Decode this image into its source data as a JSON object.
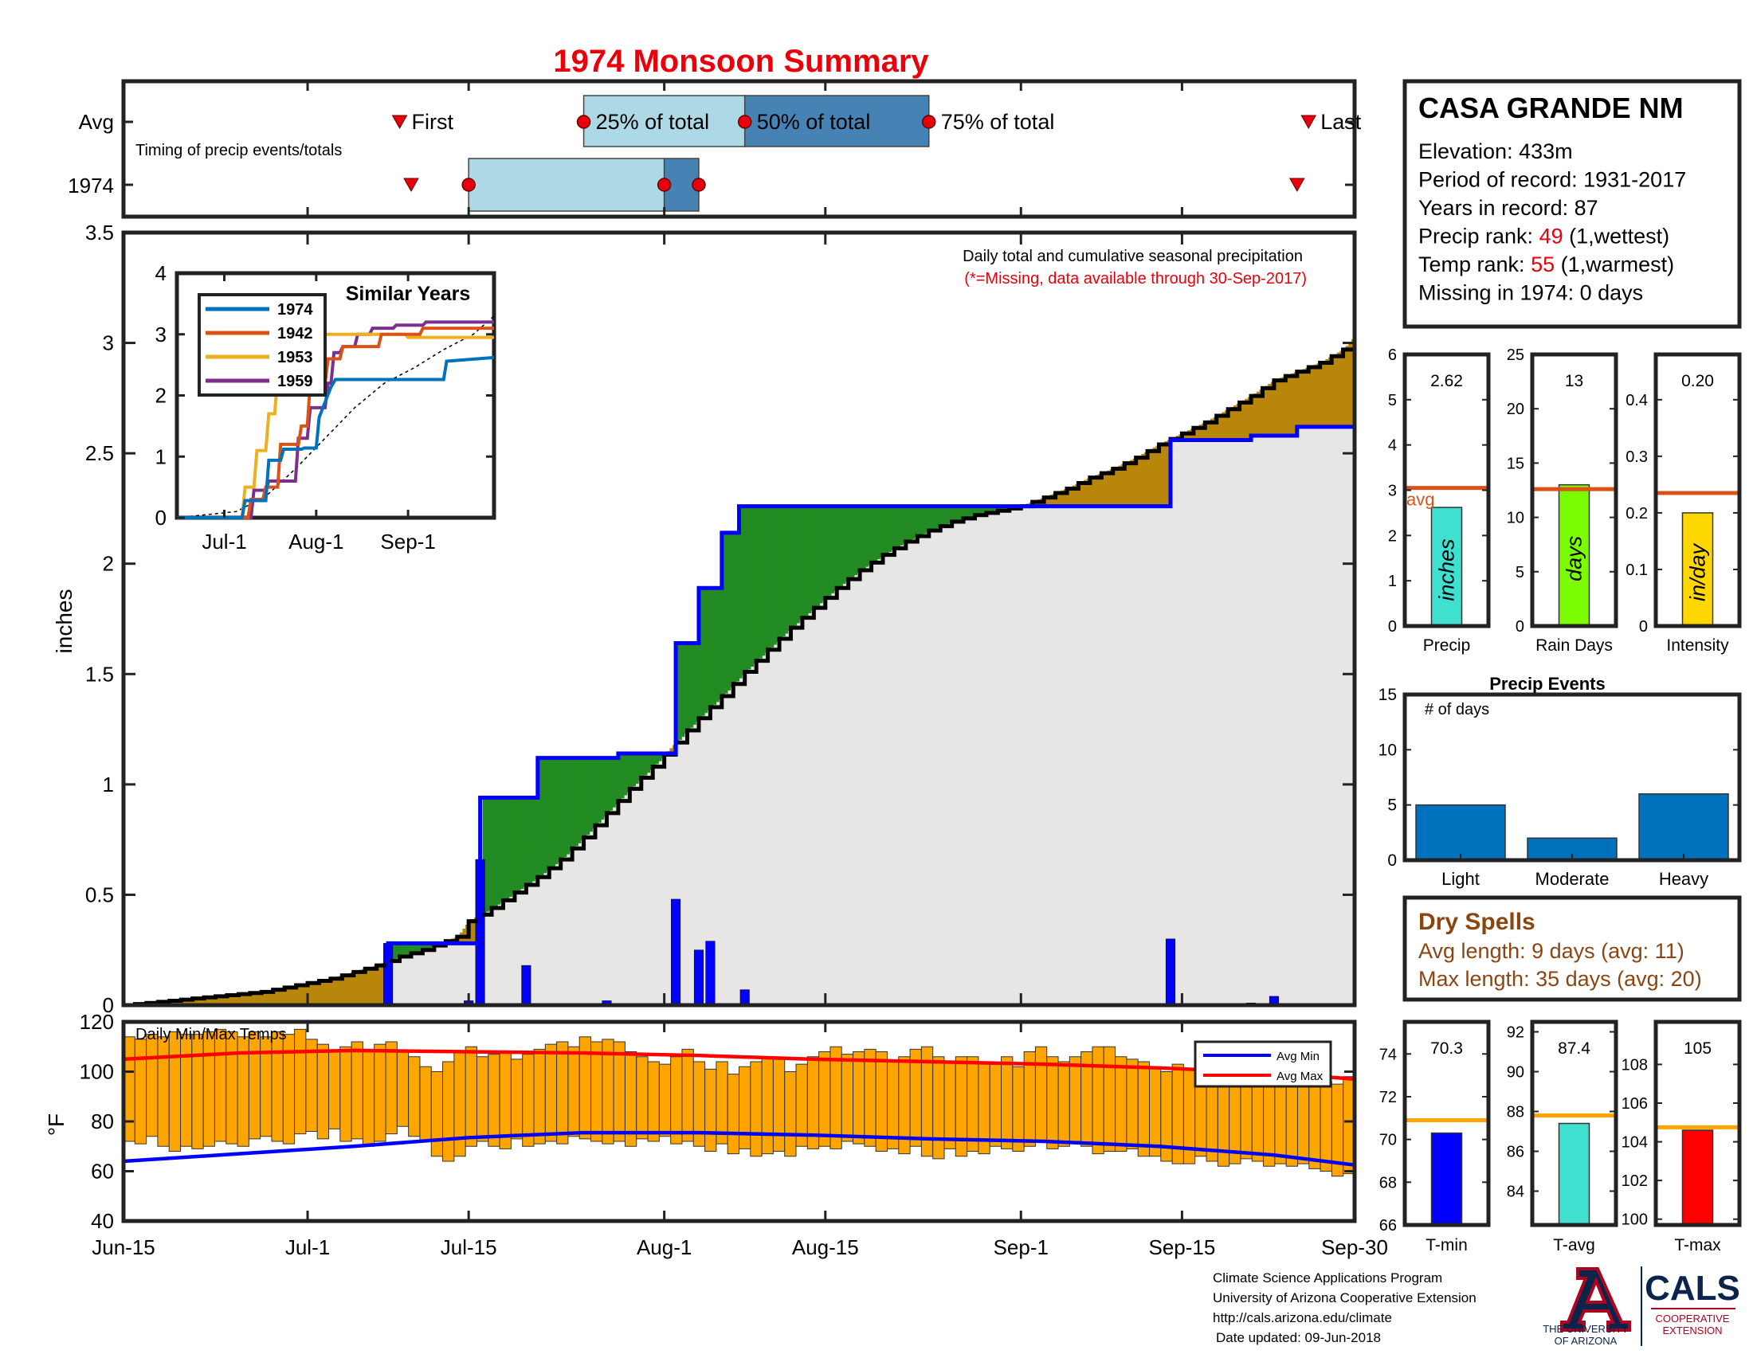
{
  "title": "1974 Monsoon Summary",
  "timing": {
    "row_labels": [
      "Avg",
      "1974"
    ],
    "subtitle": "Timing of precip events/totals",
    "avg": {
      "first": "Jul-9",
      "q25": "Jul-25",
      "q50": "Aug-8",
      "q75": "Aug-24",
      "last": "Sep-26"
    },
    "year": {
      "first": "Jul-10",
      "q25": "Jul-15",
      "q50": "Aug-1",
      "q75": "Aug-4",
      "last": "Sep-25"
    },
    "labels": {
      "first": "First",
      "q25": "25% of total",
      "q50": "50% of total",
      "q75": "75% of total",
      "last": "Last"
    }
  },
  "station": {
    "name": "CASA GRANDE NM",
    "lines": [
      {
        "label": "Elevation: ",
        "value": "433m",
        "suffix": "",
        "value_red": false
      },
      {
        "label": "Period of record: ",
        "value": "1931-2017",
        "suffix": "",
        "value_red": false
      },
      {
        "label": "Years in record: ",
        "value": "87",
        "suffix": "",
        "value_red": false
      },
      {
        "label": "Precip rank: ",
        "value": "49",
        "suffix": " (1,wettest)",
        "value_red": true
      },
      {
        "label": "Temp rank: ",
        "value": "55",
        "suffix": " (1,warmest)",
        "value_red": true
      },
      {
        "label": "Missing in 1974: ",
        "value": "0 days",
        "suffix": "",
        "value_red": false
      }
    ]
  },
  "main_chart": {
    "annotation": "Daily total and cumulative seasonal precipitation",
    "missing_note": "(*=Missing, data available through 30-Sep-2017)",
    "ylabel": "inches",
    "ylim": [
      0,
      3.5
    ],
    "yticks": [
      "0",
      "0.5",
      "1",
      "1.5",
      "2",
      "2.5",
      "3",
      "3.5"
    ],
    "xticks": [
      {
        "label": "Jun-15",
        "day": 0
      },
      {
        "label": "Jul-1",
        "day": 16
      },
      {
        "label": "Jul-15",
        "day": 30
      },
      {
        "label": "Aug-1",
        "day": 47
      },
      {
        "label": "Aug-15",
        "day": 61
      },
      {
        "label": "Sep-1",
        "day": 78
      },
      {
        "label": "Sep-15",
        "day": 92
      },
      {
        "label": "Sep-30",
        "day": 107
      }
    ]
  },
  "chart_data": [
    {
      "type": "area",
      "name": "cumulative_precipitation",
      "avg_cumulative": {
        "x": [
          0,
          2,
          4,
          6,
          8,
          10,
          12,
          14,
          16,
          18,
          20,
          22,
          24,
          26,
          28,
          29,
          30,
          32,
          34,
          36,
          38,
          40,
          42,
          44,
          46,
          48,
          50,
          52,
          54,
          56,
          58,
          60,
          62,
          64,
          66,
          68,
          70,
          72,
          74,
          76,
          78,
          80,
          82,
          84,
          86,
          88,
          90,
          92,
          94,
          96,
          98,
          100,
          102,
          104,
          106,
          107
        ],
        "y": [
          0,
          0.01,
          0.02,
          0.03,
          0.04,
          0.05,
          0.06,
          0.08,
          0.1,
          0.12,
          0.15,
          0.18,
          0.22,
          0.25,
          0.29,
          0.31,
          0.38,
          0.44,
          0.51,
          0.58,
          0.66,
          0.76,
          0.87,
          0.98,
          1.08,
          1.19,
          1.3,
          1.4,
          1.51,
          1.61,
          1.71,
          1.8,
          1.89,
          1.97,
          2.04,
          2.1,
          2.15,
          2.19,
          2.22,
          2.24,
          2.26,
          2.3,
          2.34,
          2.39,
          2.43,
          2.48,
          2.54,
          2.59,
          2.64,
          2.7,
          2.76,
          2.83,
          2.87,
          2.91,
          2.97,
          3.03
        ]
      },
      "year_cumulative": {
        "x": [
          0,
          22,
          23,
          30,
          31,
          35,
          36,
          42,
          43,
          47,
          48,
          49,
          50,
          51,
          52,
          53,
          53.5,
          90,
          91,
          97,
          98,
          101,
          102,
          107
        ],
        "y": [
          0,
          0,
          0.28,
          0.28,
          0.94,
          0.94,
          1.12,
          1.12,
          1.14,
          1.14,
          1.64,
          1.64,
          1.89,
          1.89,
          2.14,
          2.14,
          2.26,
          2.26,
          2.56,
          2.56,
          2.58,
          2.58,
          2.62,
          2.62
        ]
      },
      "daily_precip": [
        {
          "day": 23,
          "value": 0.28
        },
        {
          "day": 30,
          "value": 0.02
        },
        {
          "day": 31,
          "value": 0.66
        },
        {
          "day": 35,
          "value": 0.18
        },
        {
          "day": 42,
          "value": 0.02
        },
        {
          "day": 48,
          "value": 0.48
        },
        {
          "day": 50,
          "value": 0.25
        },
        {
          "day": 51,
          "value": 0.29
        },
        {
          "day": 54,
          "value": 0.07
        },
        {
          "day": 91,
          "value": 0.3
        },
        {
          "day": 98,
          "value": 0.01
        },
        {
          "day": 100,
          "value": 0.04
        }
      ]
    },
    {
      "type": "line",
      "name": "similar_years",
      "title": "Similar Years",
      "ylim": [
        0,
        4
      ],
      "yticks": [
        "0",
        "1",
        "2",
        "3",
        "4"
      ],
      "xticks": [
        {
          "label": "Jul-1",
          "day": 16
        },
        {
          "label": "Aug-1",
          "day": 47
        },
        {
          "label": "Sep-1",
          "day": 78
        }
      ],
      "series": [
        {
          "name": "1974",
          "color": "#0072BD",
          "x": [
            0,
            22,
            23,
            30,
            31,
            35,
            36,
            42,
            43,
            47,
            48,
            50,
            52,
            53.5,
            90,
            91,
            107
          ],
          "y": [
            0,
            0,
            0.28,
            0.28,
            0.94,
            0.94,
            1.12,
            1.12,
            1.14,
            1.14,
            1.64,
            1.89,
            2.14,
            2.26,
            2.26,
            2.56,
            2.62
          ]
        },
        {
          "name": "1942",
          "color": "#D95319",
          "x": [
            0,
            24,
            25,
            29,
            30,
            34,
            35,
            41,
            42,
            44,
            45,
            50,
            51,
            55,
            56,
            68,
            69,
            82,
            83,
            107
          ],
          "y": [
            0,
            0,
            0.3,
            0.3,
            0.5,
            0.5,
            1.2,
            1.2,
            1.5,
            1.5,
            2.2,
            2.2,
            2.6,
            2.6,
            2.8,
            2.8,
            3.0,
            3.0,
            3.1,
            3.1
          ]
        },
        {
          "name": "1953",
          "color": "#EDB120",
          "x": [
            0,
            22,
            23,
            26,
            27,
            30,
            31,
            33,
            34,
            38,
            39,
            43,
            44,
            47,
            48,
            60,
            61,
            77,
            78,
            107
          ],
          "y": [
            0,
            0,
            0.5,
            0.5,
            1.1,
            1.1,
            1.7,
            1.7,
            2.3,
            2.3,
            2.8,
            2.8,
            2.9,
            2.9,
            3.0,
            3.0,
            3.0,
            3.0,
            2.95,
            2.95
          ]
        },
        {
          "name": "1959",
          "color": "#7E2F8E",
          "x": [
            0,
            25,
            26,
            30,
            31,
            40,
            41,
            44,
            45,
            50,
            51,
            52,
            53,
            55,
            56,
            60,
            61,
            65,
            66,
            73,
            74,
            83,
            84,
            107
          ],
          "y": [
            0,
            0,
            0.45,
            0.45,
            0.6,
            0.6,
            1.3,
            1.3,
            1.8,
            1.8,
            2.2,
            2.2,
            2.7,
            2.7,
            2.8,
            2.8,
            3.0,
            3.0,
            3.1,
            3.1,
            3.15,
            3.15,
            3.2,
            3.2
          ]
        }
      ],
      "avg_dashed": {
        "x": [
          0,
          20,
          30,
          40,
          50,
          60,
          70,
          80,
          90,
          100,
          107
        ],
        "y": [
          0,
          0.1,
          0.35,
          0.8,
          1.3,
          1.8,
          2.2,
          2.45,
          2.75,
          3.0,
          3.3
        ]
      }
    },
    {
      "type": "bar",
      "name": "temps",
      "title": "Daily Min/Max Temps",
      "ylabel": "°F",
      "ylim": [
        40,
        120
      ],
      "yticks": [
        "40",
        "60",
        "80",
        "100",
        "120"
      ],
      "legend": [
        "Avg Min",
        "Avg Max"
      ],
      "tmax": [
        114,
        113,
        115,
        114,
        116,
        115,
        115,
        116,
        117,
        116,
        114,
        116,
        114,
        116,
        115,
        117,
        113,
        111,
        108,
        110,
        112,
        109,
        111,
        112,
        108,
        106,
        102,
        100,
        104,
        108,
        110,
        106,
        107,
        108,
        105,
        107,
        109,
        111,
        112,
        110,
        114,
        112,
        113,
        112,
        108,
        106,
        104,
        103,
        106,
        109,
        104,
        101,
        104,
        99,
        102,
        104,
        106,
        105,
        100,
        103,
        106,
        108,
        110,
        107,
        108,
        109,
        108,
        104,
        106,
        109,
        110,
        106,
        104,
        106,
        106,
        104,
        103,
        106,
        102,
        108,
        110,
        106,
        104,
        106,
        108,
        110,
        110,
        106,
        105,
        104,
        102,
        100,
        103,
        101,
        104,
        103,
        100,
        97,
        99,
        101,
        102,
        98,
        99,
        100,
        97,
        96,
        95,
        98
      ],
      "tmin": [
        72,
        71,
        74,
        70,
        68,
        70,
        69,
        70,
        72,
        71,
        70,
        73,
        74,
        72,
        71,
        75,
        76,
        73,
        77,
        72,
        73,
        70,
        72,
        75,
        78,
        74,
        72,
        66,
        64,
        66,
        70,
        72,
        70,
        69,
        73,
        70,
        71,
        72,
        71,
        74,
        73,
        72,
        71,
        72,
        70,
        73,
        72,
        74,
        71,
        72,
        70,
        68,
        71,
        67,
        69,
        66,
        67,
        68,
        66,
        70,
        69,
        70,
        69,
        72,
        71,
        70,
        68,
        69,
        67,
        70,
        66,
        65,
        69,
        66,
        68,
        67,
        70,
        69,
        68,
        70,
        72,
        69,
        70,
        72,
        70,
        67,
        68,
        68,
        69,
        66,
        66,
        64,
        63,
        63,
        66,
        64,
        62,
        63,
        65,
        64,
        62,
        63,
        62,
        63,
        61,
        60,
        58,
        59
      ],
      "avg_max": {
        "x": [
          0,
          10,
          20,
          30,
          40,
          50,
          60,
          70,
          80,
          90,
          100,
          107
        ],
        "y": [
          105,
          107.5,
          108.5,
          108,
          107.5,
          106.5,
          105,
          104,
          103,
          101.5,
          99.5,
          97
        ]
      },
      "avg_min": {
        "x": [
          0,
          10,
          20,
          30,
          40,
          50,
          60,
          70,
          80,
          90,
          100,
          107
        ],
        "y": [
          64,
          67,
          70,
          73.5,
          75.5,
          75.5,
          74.5,
          73,
          72,
          70,
          66.5,
          62.5
        ]
      }
    },
    {
      "type": "bar",
      "name": "precip_stats",
      "panels": [
        {
          "label": "Precip",
          "value": 2.62,
          "value_text": "2.62",
          "avg": 3.05,
          "ylim": [
            0,
            6
          ],
          "yticks": [
            "0",
            "1",
            "2",
            "3",
            "4",
            "5",
            "6"
          ],
          "unit": "inches",
          "color": "#40E0D0",
          "avg_label": "avg"
        },
        {
          "label": "Rain Days",
          "value": 13,
          "value_text": "13",
          "avg": 12.6,
          "ylim": [
            0,
            25
          ],
          "yticks": [
            "0",
            "5",
            "10",
            "15",
            "20",
            "25"
          ],
          "unit": "days",
          "color": "#7CFC00"
        },
        {
          "label": "Intensity",
          "value": 0.2,
          "value_text": "0.20",
          "avg": 0.235,
          "ylim": [
            0,
            0.48
          ],
          "yticks": [
            "0",
            "0.1",
            "0.2",
            "0.3",
            "0.4"
          ],
          "unit": "in/day",
          "color": "#FFD700"
        }
      ]
    },
    {
      "type": "bar",
      "name": "precip_events",
      "title": "Precip Events",
      "ylabel_note": "# of days",
      "categories": [
        "Light",
        "Moderate",
        "Heavy"
      ],
      "values": [
        5,
        2,
        6
      ],
      "ylim": [
        0,
        15
      ],
      "yticks": [
        "0",
        "5",
        "10",
        "15"
      ]
    },
    {
      "type": "bar",
      "name": "temp_stats",
      "panels": [
        {
          "label": "T-min",
          "value": 70.3,
          "value_text": "70.3",
          "avg": 70.9,
          "ylim": [
            66,
            75.5
          ],
          "yticks": [
            "66",
            "68",
            "70",
            "72",
            "74"
          ],
          "color": "#0000FF"
        },
        {
          "label": "T-avg",
          "value": 87.4,
          "value_text": "87.4",
          "avg": 87.8,
          "ylim": [
            82.3,
            92.5
          ],
          "yticks": [
            "84",
            "86",
            "88",
            "90",
            "92"
          ],
          "color": "#40E0D0"
        },
        {
          "label": "T-max",
          "value": 104.6,
          "value_text": "105",
          "avg": 104.75,
          "ylim": [
            99.7,
            110.2
          ],
          "yticks": [
            "100",
            "102",
            "104",
            "106",
            "108"
          ],
          "color": "#FF0000"
        }
      ]
    }
  ],
  "dry_spells": {
    "title": "Dry Spells",
    "avg_length": "Avg length: 9 days (avg: 11)",
    "max_length": "Max length: 35 days (avg: 20)"
  },
  "footer": {
    "lines": [
      "Climate Science Applications Program",
      "University of Arizona Cooperative Extension",
      "http://cals.arizona.edu/climate",
      "Date updated: 09-Jun-2018"
    ]
  },
  "logos": {
    "ua_line1": "THE UNIVERSITY",
    "ua_line2": "OF ARIZONA",
    "cals": "CALS",
    "cals_sub1": "COOPERATIVE",
    "cals_sub2": "EXTENSION"
  },
  "colors": {
    "title_red": "#E8000B",
    "avg_line": "#D95319",
    "dry_title": "#8B4513",
    "surplus_green": "#228B22",
    "deficit_brown": "#B8860B",
    "year_line": "#0000FF",
    "temp_bars": "#FFA500"
  }
}
